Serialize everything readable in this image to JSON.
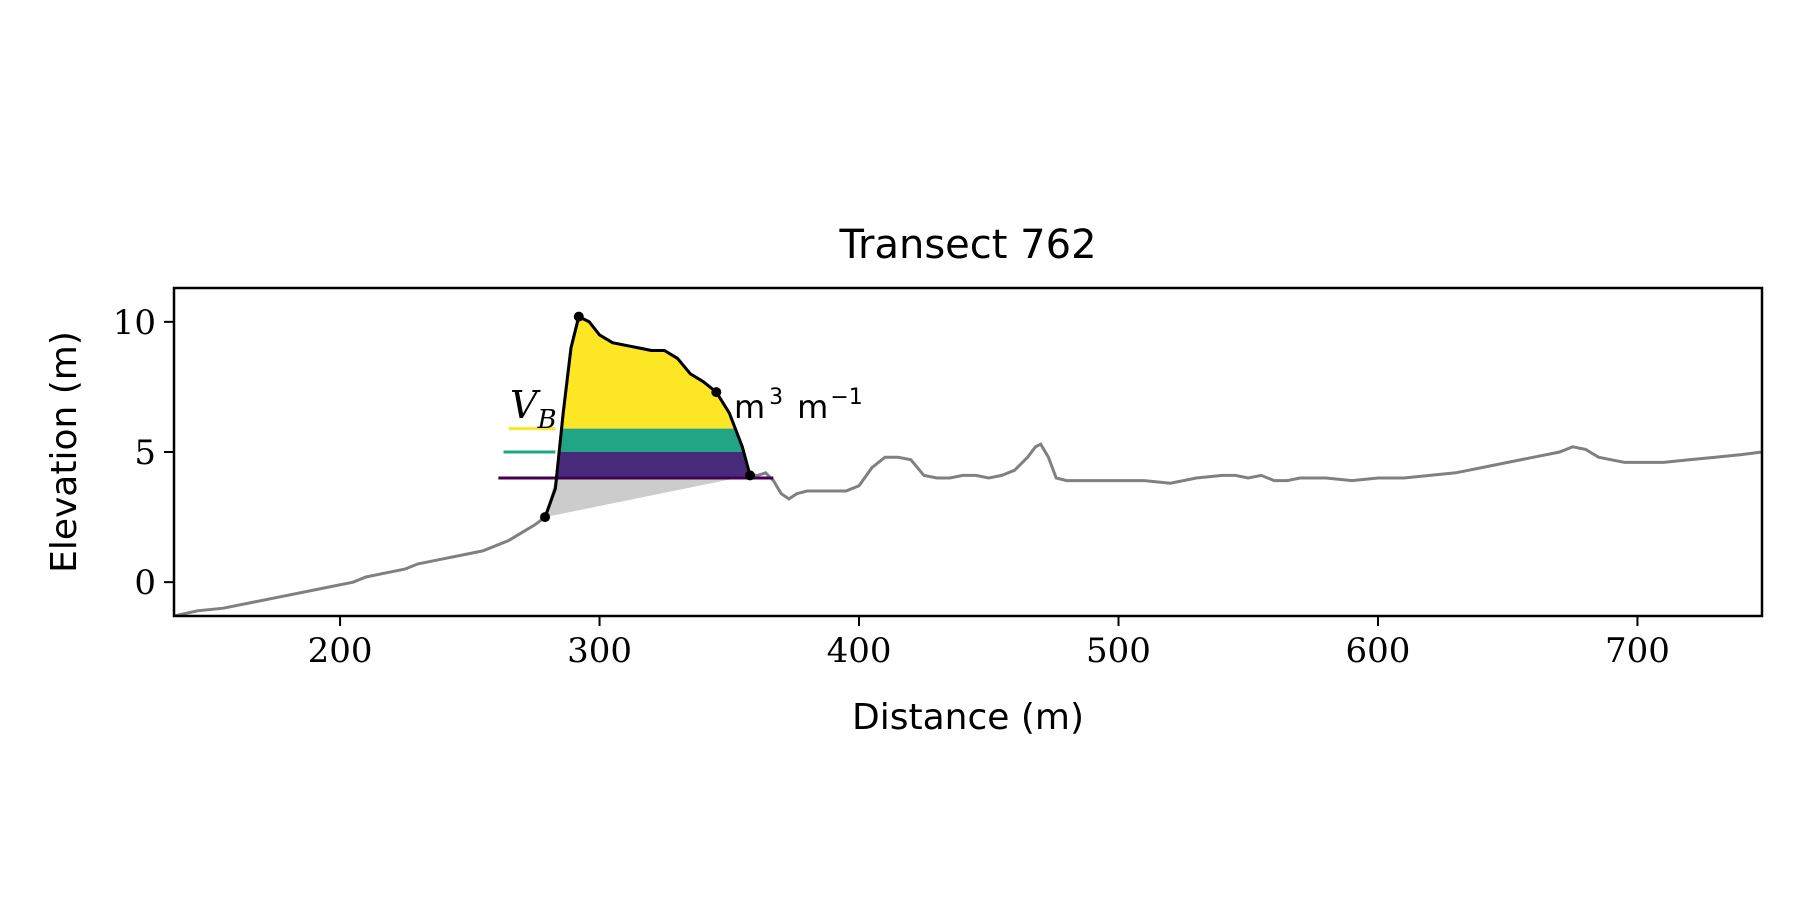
{
  "chart_data": {
    "type": "line",
    "title": "Transect 762",
    "xlabel": "Distance (m)",
    "ylabel": "Elevation (m)",
    "xlim": [
      136,
      748
    ],
    "ylim": [
      -1.3,
      11.3
    ],
    "xticks": [
      200,
      300,
      400,
      500,
      600,
      700
    ],
    "yticks": [
      0,
      5,
      10
    ],
    "grid": false,
    "legend": "none",
    "annotation": {
      "symbol": "V",
      "subscript": "B",
      "unit_text": "m",
      "unit_sup1": "3",
      "unit_text2": "m",
      "unit_sup2": "−1"
    },
    "profile": {
      "color": "#808080",
      "x": [
        136,
        145,
        155,
        165,
        175,
        185,
        195,
        205,
        210,
        215,
        220,
        225,
        230,
        235,
        240,
        245,
        250,
        255,
        260,
        265,
        270,
        275,
        279,
        283,
        286,
        289,
        292,
        296,
        300,
        305,
        310,
        315,
        320,
        325,
        330,
        335,
        340,
        345,
        350,
        355,
        358,
        361,
        364,
        367,
        370,
        373,
        376,
        380,
        385,
        390,
        395,
        400,
        405,
        410,
        415,
        420,
        425,
        430,
        435,
        440,
        445,
        450,
        455,
        460,
        465,
        468,
        470,
        473,
        476,
        480,
        490,
        500,
        510,
        520,
        530,
        540,
        545,
        550,
        555,
        560,
        565,
        570,
        580,
        590,
        600,
        610,
        620,
        630,
        640,
        650,
        660,
        670,
        675,
        680,
        685,
        690,
        695,
        700,
        710,
        720,
        730,
        740,
        748
      ],
      "y": [
        -1.3,
        -1.1,
        -1.0,
        -0.8,
        -0.6,
        -0.4,
        -0.2,
        0.0,
        0.2,
        0.3,
        0.4,
        0.5,
        0.7,
        0.8,
        0.9,
        1.0,
        1.1,
        1.2,
        1.4,
        1.6,
        1.9,
        2.2,
        2.5,
        3.6,
        6.5,
        9.0,
        10.2,
        10.0,
        9.5,
        9.2,
        9.1,
        9.0,
        8.9,
        8.9,
        8.6,
        8.0,
        7.7,
        7.3,
        6.5,
        5.2,
        4.1,
        4.1,
        4.2,
        3.9,
        3.4,
        3.2,
        3.4,
        3.5,
        3.5,
        3.5,
        3.5,
        3.7,
        4.4,
        4.8,
        4.8,
        4.7,
        4.1,
        4.0,
        4.0,
        4.1,
        4.1,
        4.0,
        4.1,
        4.3,
        4.8,
        5.2,
        5.3,
        4.8,
        4.0,
        3.9,
        3.9,
        3.9,
        3.9,
        3.8,
        4.0,
        4.1,
        4.1,
        4.0,
        4.1,
        3.9,
        3.9,
        4.0,
        4.0,
        3.9,
        4.0,
        4.0,
        4.1,
        4.2,
        4.4,
        4.6,
        4.8,
        5.0,
        5.2,
        5.1,
        4.8,
        4.7,
        4.6,
        4.6,
        4.6,
        4.7,
        4.8,
        4.9,
        5.0
      ]
    },
    "dune": {
      "color": "#000000",
      "x": [
        279,
        283,
        286,
        289,
        292,
        296,
        300,
        305,
        310,
        315,
        320,
        325,
        330,
        335,
        340,
        345,
        350,
        355,
        358
      ],
      "y": [
        2.5,
        3.6,
        6.5,
        9.0,
        10.2,
        10.0,
        9.5,
        9.2,
        9.1,
        9.0,
        8.9,
        8.9,
        8.6,
        8.0,
        7.7,
        7.3,
        6.5,
        5.2,
        4.1
      ]
    },
    "points": {
      "x": [
        279,
        292,
        345,
        358
      ],
      "y": [
        2.5,
        10.2,
        7.3,
        4.1
      ]
    },
    "base_wedge": {
      "color": "#cccccc",
      "x": [
        279,
        358
      ],
      "y": [
        2.5,
        4.1
      ]
    },
    "bands": [
      {
        "from": 4.0,
        "to": 5.0,
        "color": "#472b7a"
      },
      {
        "from": 5.0,
        "to": 5.9,
        "color": "#21a585"
      },
      {
        "from": 5.9,
        "to": 10.4,
        "color": "#fde725"
      }
    ],
    "levels": [
      {
        "y": 5.9,
        "x0": 265,
        "x1": 283,
        "color": "#fde725"
      },
      {
        "y": 5.0,
        "x0": 263,
        "x1": 283,
        "color": "#21a585"
      },
      {
        "y": 4.0,
        "x0": 261,
        "x1": 367,
        "color": "#440154"
      }
    ]
  }
}
